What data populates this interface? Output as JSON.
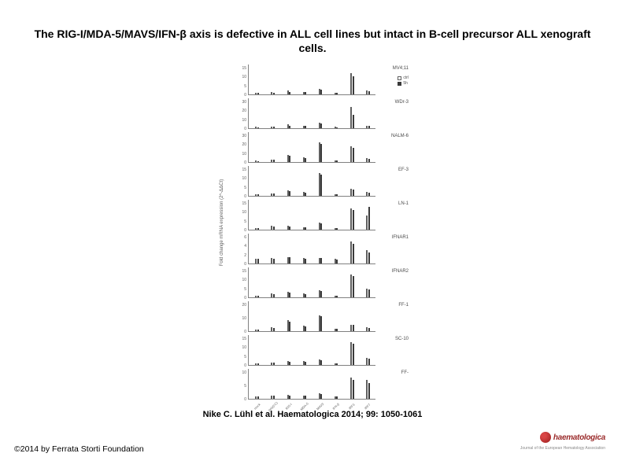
{
  "title": "The RIG-I/MDA-5/MAVS/IFN-β axis is defective in ALL cell lines but intact in B-cell precursor ALL xenograft cells.",
  "citation": "Nike C. Lühl et al. Haematologica 2014; 99: 1050-1061",
  "copyright": "©2014 by Ferrata Storti Foundation",
  "logo": {
    "text": "haematologica",
    "sub": "Journal of the European Hematology Association"
  },
  "ylabel": "Fold change mRNA expression (2^-ΔΔCt)",
  "legend": {
    "item1": "ctrl",
    "item2": "5h"
  },
  "xaxis_labels": [
    "mock",
    "poly(I:C)",
    "RIG-I",
    "MDA-5",
    "MAVS",
    "IFN-β",
    "IRF3",
    "IRF7"
  ],
  "panels": [
    {
      "name": "MV4;11",
      "yticks": [
        "0",
        "5",
        "10",
        "15"
      ],
      "open": [
        1,
        1.2,
        2,
        1.5,
        3,
        1,
        12,
        2
      ],
      "solid": [
        1,
        1.1,
        1.5,
        1.3,
        2.5,
        1,
        10,
        1.8
      ]
    },
    {
      "name": "WDr-3",
      "yticks": [
        "0",
        "10",
        "20",
        "30"
      ],
      "open": [
        1,
        2,
        4,
        3,
        6,
        1,
        24,
        3
      ],
      "solid": [
        1,
        1.5,
        3,
        2.5,
        5,
        1,
        15,
        2.5
      ]
    },
    {
      "name": "NALM-6",
      "yticks": [
        "0",
        "10",
        "20",
        "30"
      ],
      "open": [
        1,
        3,
        8,
        5,
        22,
        2,
        18,
        4
      ],
      "solid": [
        1,
        2.5,
        7,
        4.5,
        20,
        1.8,
        16,
        3.5
      ]
    },
    {
      "name": "EF-3",
      "yticks": [
        "0",
        "5",
        "10",
        "15"
      ],
      "open": [
        1,
        1.3,
        3,
        2,
        13,
        1,
        4,
        2
      ],
      "solid": [
        1,
        1.2,
        2.8,
        1.8,
        12,
        0.9,
        3.5,
        1.8
      ]
    },
    {
      "name": "LN-1",
      "yticks": [
        "0",
        "5",
        "10",
        "15"
      ],
      "open": [
        1,
        2,
        2,
        1.5,
        4,
        1,
        12,
        8
      ],
      "solid": [
        1,
        1.8,
        1.8,
        1.3,
        3.5,
        0.9,
        11,
        13
      ]
    },
    {
      "name": "IFNAR1",
      "yticks": [
        "0",
        "2",
        "4",
        "6"
      ],
      "open": [
        1,
        1.2,
        1.5,
        1.2,
        1.3,
        1,
        5,
        3
      ],
      "solid": [
        1,
        1.1,
        1.4,
        1.1,
        1.2,
        0.9,
        4.5,
        2.5
      ]
    },
    {
      "name": "IFNAR2",
      "yticks": [
        "0",
        "5",
        "10",
        "15"
      ],
      "open": [
        1,
        2,
        3,
        2,
        4,
        1,
        13,
        5
      ],
      "solid": [
        1,
        1.8,
        2.8,
        1.8,
        3.6,
        0.9,
        12,
        4.5
      ]
    },
    {
      "name": "FF-1",
      "yticks": [
        "0",
        "10",
        "20"
      ],
      "open": [
        1,
        3,
        8,
        4,
        12,
        2,
        5,
        3
      ],
      "solid": [
        1,
        2.5,
        7,
        3.5,
        11,
        1.8,
        4.5,
        2.5
      ]
    },
    {
      "name": "SC-10",
      "yticks": [
        "0",
        "5",
        "10",
        "15"
      ],
      "open": [
        1,
        1.5,
        2,
        2,
        3,
        1,
        13,
        4
      ],
      "solid": [
        1,
        1.3,
        1.8,
        1.8,
        2.8,
        0.9,
        12,
        3.6
      ]
    },
    {
      "name": "FF-",
      "yticks": [
        "0",
        "5",
        "10"
      ],
      "open": [
        1,
        1.2,
        1.5,
        1.2,
        2,
        1,
        8,
        7
      ],
      "solid": [
        1,
        1.1,
        1.3,
        1.1,
        1.8,
        0.9,
        7,
        6
      ]
    }
  ],
  "colors": {
    "background": "#ffffff",
    "text": "#000000",
    "axis": "#808080",
    "bar_open_border": "#606060",
    "bar_solid": "#3a3a3a",
    "tick_text": "#606060",
    "logo_red": "#9a2a2a"
  }
}
